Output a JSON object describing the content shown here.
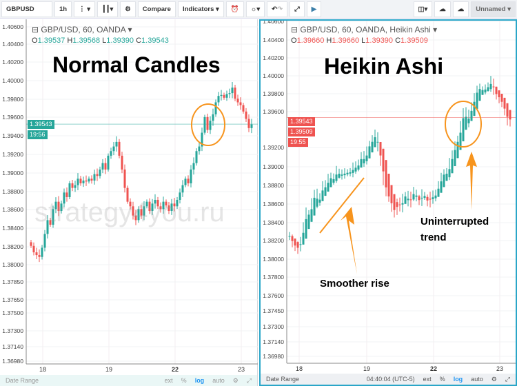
{
  "toolbar": {
    "symbol": "GBPUSD",
    "interval": "1h",
    "compare": "Compare",
    "indicators": "Indicators",
    "layout_name": "Unnamed"
  },
  "left": {
    "legend": "GBP/USD, 60, OANDA",
    "o": "1.39537",
    "h": "1.39568",
    "l": "1.39390",
    "c": "1.39543",
    "ohlc_color": "#26a69a",
    "price_label": "1.39543",
    "time_label": "19:56",
    "price_box_color": "#26a69a",
    "yticks": [
      "1.40600",
      "1.40400",
      "1.40200",
      "1.40000",
      "1.39800",
      "1.39600",
      "1.39400",
      "1.39200",
      "1.39000",
      "1.38800",
      "1.38600",
      "1.38400",
      "1.38200",
      "1.38000",
      "1.37850",
      "1.37650",
      "1.37500",
      "1.37300",
      "1.37140",
      "1.36980"
    ],
    "xticks": [
      "18",
      "19",
      "22",
      "23"
    ],
    "title": "Normal Candles",
    "footer": {
      "date_range": "Date Range",
      "ext": "ext",
      "pct": "%",
      "log": "log",
      "auto": "auto"
    }
  },
  "right": {
    "legend": "GBP/USD, 60, OANDA, Heikin Ashi",
    "o": "1.39660",
    "h": "1.39660",
    "l": "1.39390",
    "c": "1.39509",
    "ohlc_color": "#ef5350",
    "price_label": "1.39543",
    "price_label2": "1.39509",
    "time_label": "19:55",
    "price_box_color": "#ef5350",
    "yticks": [
      "1.40600",
      "1.40400",
      "1.40200",
      "1.40000",
      "1.39800",
      "1.39600",
      "1.39200",
      "1.39000",
      "1.38800",
      "1.38600",
      "1.38400",
      "1.38200",
      "1.38000",
      "1.37800",
      "1.37600",
      "1.37450",
      "1.37300",
      "1.37140",
      "1.36980"
    ],
    "xticks": [
      "18",
      "19",
      "22",
      "23"
    ],
    "title": "Heikin Ashi",
    "annotation1": "Smoother rise",
    "annotation2a": "Uninterrupted",
    "annotation2b": "trend",
    "footer": {
      "date_range": "Date Range",
      "time": "04:40:04 (UTC-5)",
      "ext": "ext",
      "pct": "%",
      "log": "log",
      "auto": "auto"
    }
  },
  "watermark": "strategy4you.ru",
  "colors": {
    "up": "#26a69a",
    "down": "#ef5350",
    "annotation": "#f7941d",
    "accent": "#2aa6c8"
  },
  "chart_data": {
    "type": "candlestick",
    "interval": "1h",
    "symbol": "GBP/USD",
    "closes": [
      1.3822,
      1.3815,
      1.3812,
      1.381,
      1.382,
      1.3835,
      1.385,
      1.3845,
      1.3862,
      1.387,
      1.386,
      1.3868,
      1.388,
      1.3875,
      1.389,
      1.3885,
      1.3888,
      1.3895,
      1.389,
      1.3893,
      1.3892,
      1.3895,
      1.3893,
      1.39,
      1.3898,
      1.3905,
      1.3912,
      1.3905,
      1.392,
      1.3925,
      1.393,
      1.3935,
      1.392,
      1.3905,
      1.3885,
      1.387,
      1.3865,
      1.3855,
      1.385,
      1.3862,
      1.3855,
      1.3865,
      1.387,
      1.386,
      1.3868,
      1.3872,
      1.3865,
      1.3862,
      1.387,
      1.3866,
      1.386,
      1.3868,
      1.3865,
      1.3872,
      1.388,
      1.3888,
      1.3895,
      1.389,
      1.3905,
      1.3912,
      1.3925,
      1.393,
      1.3945,
      1.3962,
      1.3948,
      1.3958,
      1.3965,
      1.3978,
      1.3985,
      1.3986,
      1.3983,
      1.3987,
      1.3988,
      1.3994,
      1.3982,
      1.3978,
      1.3975,
      1.3968,
      1.396,
      1.395,
      1.3954
    ]
  }
}
